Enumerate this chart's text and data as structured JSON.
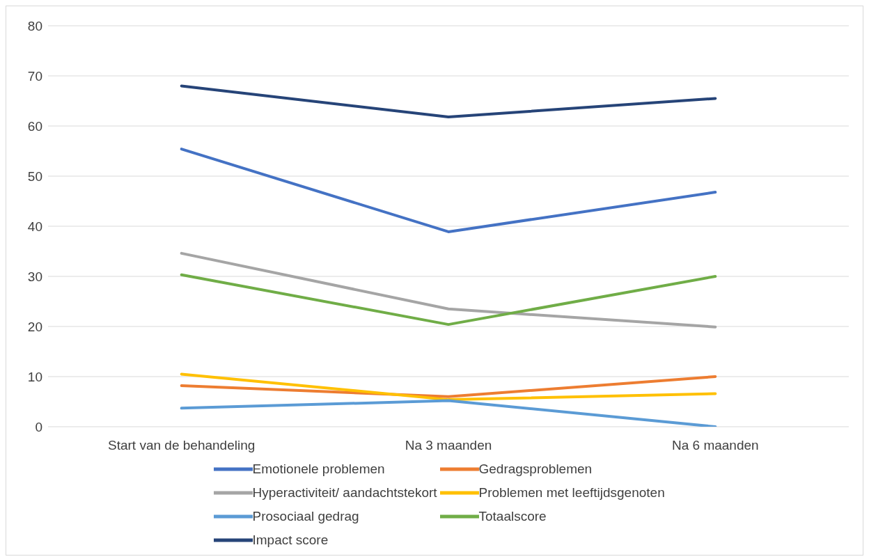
{
  "chart_data": {
    "type": "line",
    "categories": [
      "Start van de behandeling",
      "Na 3 maanden",
      "Na 6 maanden"
    ],
    "series": [
      {
        "name": "Emotionele problemen",
        "color": "#4472c4",
        "values": [
          55.4,
          38.9,
          46.8
        ]
      },
      {
        "name": "Gedragsproblemen",
        "color": "#ed7d31",
        "values": [
          8.2,
          6.0,
          10.0
        ]
      },
      {
        "name": "Hyperactiviteit/ aandachtstekort",
        "color": "#a5a5a5",
        "values": [
          34.6,
          23.5,
          19.9
        ]
      },
      {
        "name": "Problemen met leeftijdsgenoten",
        "color": "#ffc000",
        "values": [
          10.5,
          5.4,
          6.6
        ]
      },
      {
        "name": "Prosociaal gedrag",
        "color": "#5b9bd5",
        "values": [
          3.7,
          5.2,
          0
        ]
      },
      {
        "name": "Totaalscore",
        "color": "#70ad47",
        "values": [
          30.3,
          20.4,
          30.0
        ]
      },
      {
        "name": "Impact score",
        "color": "#264478",
        "values": [
          68,
          61.8,
          65.5
        ]
      }
    ],
    "ylim": [
      0,
      80
    ],
    "yticks": [
      0,
      10,
      20,
      30,
      40,
      50,
      60,
      70,
      80
    ],
    "grid": "y",
    "legend": "bottom",
    "marker": "none",
    "line_style": "solid"
  }
}
